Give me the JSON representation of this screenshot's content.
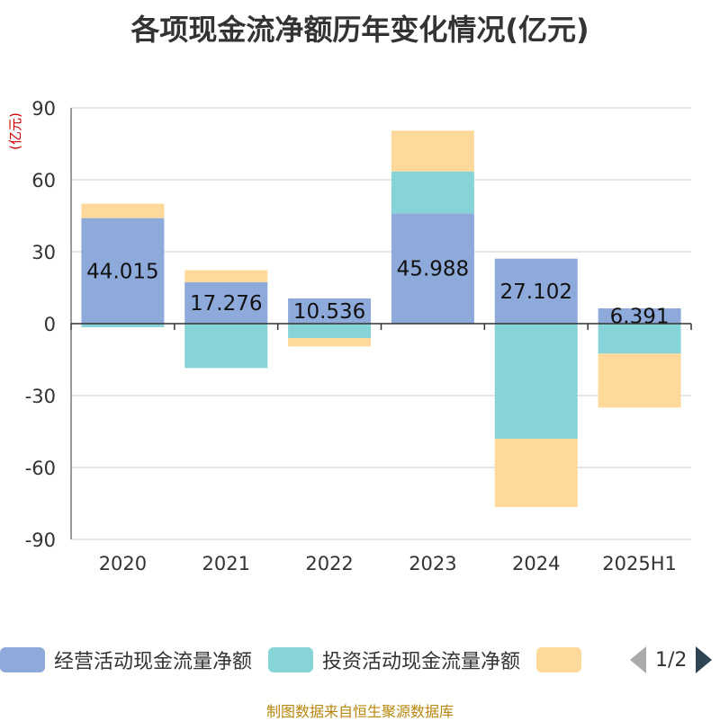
{
  "title": "各项现金流净额历年变化情况(亿元)",
  "source": "制图数据来自恒生聚源数据库",
  "chart_data": {
    "type": "bar",
    "stacked": true,
    "unit": "(亿元)",
    "ylim": [
      -90,
      90
    ],
    "yticks": [
      90,
      60,
      30,
      0,
      -30,
      -60,
      -90
    ],
    "grid": true,
    "legend_position": "bottom",
    "categories": [
      "2020",
      "2021",
      "2022",
      "2023",
      "2024",
      "2025H1"
    ],
    "series": [
      {
        "name": "经营活动现金流量净额",
        "color": "#8eaadb",
        "values": [
          44.015,
          17.276,
          10.536,
          45.988,
          27.102,
          6.391
        ],
        "labels": [
          "44.015",
          "17.276",
          "10.536",
          "45.988",
          "27.102",
          "6.391"
        ]
      },
      {
        "name": "投资活动现金流量净额",
        "color": "#86d4d8",
        "values": [
          -1.5,
          -18.5,
          -6.0,
          17.5,
          -48.0,
          -12.5
        ]
      },
      {
        "name": "",
        "color": "#ffd99a",
        "values": [
          6.0,
          5.0,
          -3.5,
          17.0,
          -28.5,
          -22.5
        ]
      }
    ]
  },
  "pager": {
    "text": "1/2"
  }
}
